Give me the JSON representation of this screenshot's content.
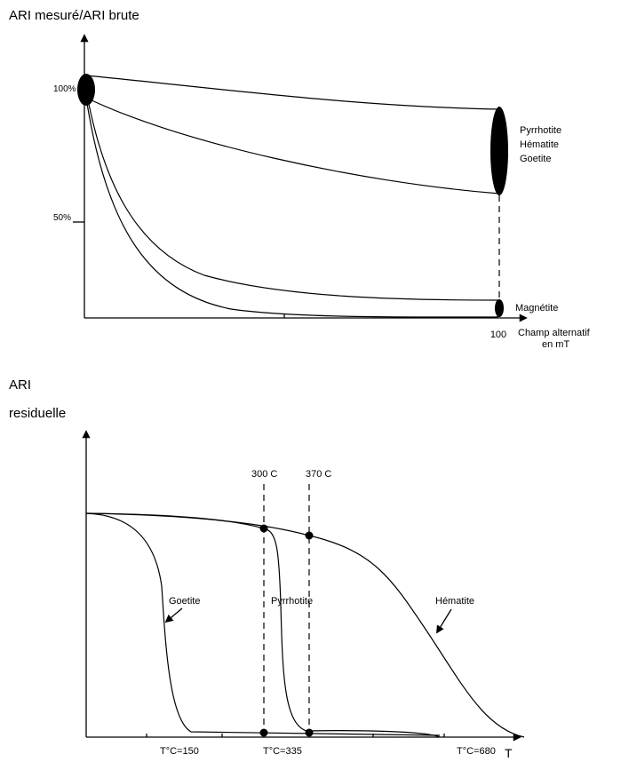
{
  "top_panel": {
    "y_axis_label": "ARI mesuré/ARI brute",
    "y_labels": [
      "100%",
      "50%"
    ],
    "upper_band_labels": [
      "Pyrrhotite",
      "Hématite",
      "Goetite"
    ],
    "lower_band_label": "Magnétite",
    "x_end_label": "100",
    "x_axis_label": [
      "Champ alternatif",
      "en mT"
    ]
  },
  "bottom_panel": {
    "y_axis_label": [
      "ARI",
      "residuelle"
    ],
    "markers": [
      "300 C",
      "370 C"
    ],
    "curve_labels": [
      "Goetite",
      "Pyrrhotite",
      "Hématite"
    ],
    "x_labels": [
      "T°C=150",
      "T°C=335",
      "T°C=680"
    ],
    "x_axis_label": "T"
  }
}
